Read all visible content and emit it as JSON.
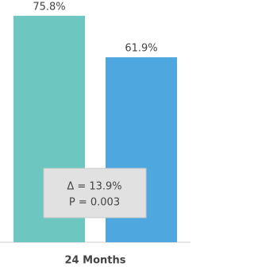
{
  "chart_data": {
    "type": "bar",
    "categories": [
      "24 Months"
    ],
    "series": [
      {
        "color": "#6dc6bf",
        "values": [
          75.8
        ],
        "value_labels": [
          "75.8%"
        ]
      },
      {
        "color": "#4ea7df",
        "values": [
          61.9
        ],
        "value_labels": [
          "61.9%"
        ]
      }
    ],
    "ylim": [
      0,
      80
    ],
    "annotations": [
      "Δ = 13.9%",
      "P = 0.003"
    ]
  }
}
